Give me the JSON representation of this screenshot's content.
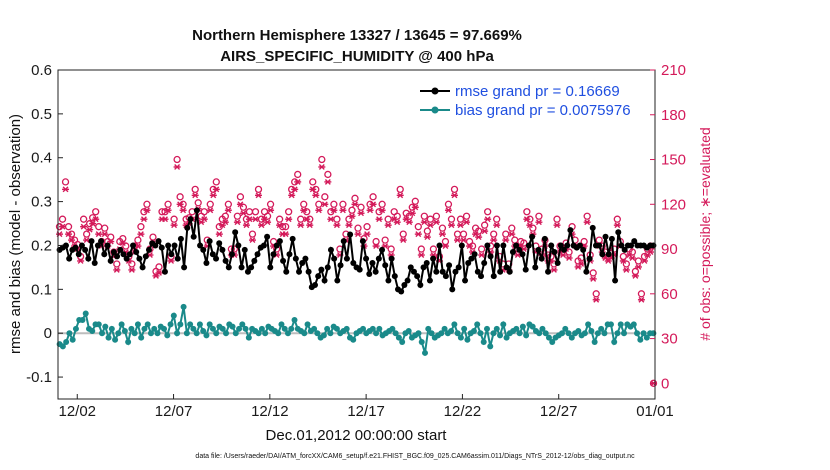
{
  "chart_data": {
    "type": "line",
    "title": "Northern Hemisphere 13327 / 13645 = 97.669%",
    "subtitle": "AIRS_SPECIFIC_HUMIDITY @ 400 hPa",
    "xlabel": "Dec.01,2012 00:00:00 start",
    "ylabel": "rmse and bias (model - observation)",
    "ylabel_right": "# of obs: o=possible; ∗=evaluated",
    "footnote": "data file: /Users/raeder/DAI/ATM_forcXX/CAM6_setup/f.e21.FHIST_BGC.f09_025.CAM6assim.011/Diags_NTrS_2012-12/obs_diag_output.nc",
    "x_ticks": [
      {
        "day": 1,
        "label": "12/02"
      },
      {
        "day": 6,
        "label": "12/07"
      },
      {
        "day": 11,
        "label": "12/12"
      },
      {
        "day": 16,
        "label": "12/17"
      },
      {
        "day": 21,
        "label": "12/22"
      },
      {
        "day": 26,
        "label": "12/27"
      },
      {
        "day": 31,
        "label": "01/01"
      }
    ],
    "xlim": [
      0,
      31
    ],
    "ylim": [
      -0.15,
      0.6
    ],
    "y_ticks": [
      -0.1,
      0,
      0.1,
      0.2,
      0.3,
      0.4,
      0.5,
      0.6
    ],
    "y_tick_labels": [
      "-0.1",
      "0",
      "0.1",
      "0.2",
      "0.3",
      "0.4",
      "0.5",
      "0.6"
    ],
    "ylim_right": [
      -10.5,
      210
    ],
    "y2_ticks": [
      0,
      30,
      60,
      90,
      120,
      150,
      180,
      210
    ],
    "y2_tick_labels": [
      "0",
      "30",
      "60",
      "90",
      "120",
      "150",
      "180",
      "210"
    ],
    "legend_position": "top-right",
    "series": [
      {
        "name": "rmse grand pr = 0.16669",
        "color": "#000000",
        "axis": "left",
        "values": [
          0.19,
          0.195,
          0.2,
          0.17,
          0.19,
          0.195,
          0.18,
          0.2,
          0.19,
          0.17,
          0.21,
          0.16,
          0.2,
          0.21,
          0.18,
          0.2,
          0.165,
          0.185,
          0.175,
          0.19,
          0.18,
          0.17,
          0.18,
          0.2,
          0.185,
          0.17,
          0.15,
          0.175,
          0.19,
          0.205,
          0.2,
          0.21,
          0.195,
          0.14,
          0.2,
          0.18,
          0.2,
          0.17,
          0.215,
          0.15,
          0.24,
          0.26,
          0.22,
          0.28,
          0.2,
          0.19,
          0.16,
          0.21,
          0.18,
          0.17,
          0.205,
          0.19,
          0.165,
          0.15,
          0.18,
          0.23,
          0.2,
          0.15,
          0.19,
          0.14,
          0.15,
          0.165,
          0.18,
          0.195,
          0.2,
          0.22,
          0.15,
          0.18,
          0.2,
          0.21,
          0.165,
          0.14,
          0.18,
          0.215,
          0.17,
          0.14,
          0.16,
          0.17,
          0.14,
          0.105,
          0.11,
          0.13,
          0.145,
          0.12,
          0.15,
          0.19,
          0.17,
          0.12,
          0.155,
          0.21,
          0.17,
          0.225,
          0.16,
          0.15,
          0.145,
          0.21,
          0.17,
          0.135,
          0.16,
          0.14,
          0.17,
          0.19,
          0.155,
          0.12,
          0.17,
          0.13,
          0.1,
          0.095,
          0.11,
          0.12,
          0.15,
          0.14,
          0.13,
          0.11,
          0.15,
          0.16,
          0.12,
          0.17,
          0.14,
          0.2,
          0.14,
          0.13,
          0.155,
          0.1,
          0.14,
          0.15,
          0.2,
          0.12,
          0.16,
          0.17,
          0.18,
          0.14,
          0.13,
          0.16,
          0.2,
          0.175,
          0.13,
          0.2,
          0.14,
          0.2,
          0.15,
          0.14,
          0.185,
          0.2,
          0.19,
          0.18,
          0.145,
          0.2,
          0.22,
          0.15,
          0.19,
          0.17,
          0.215,
          0.14,
          0.2,
          0.185,
          0.16,
          0.2,
          0.19,
          0.2,
          0.235,
          0.2,
          0.195,
          0.2,
          0.19,
          0.14,
          0.17,
          0.24,
          0.2,
          0.2,
          0.18,
          0.22,
          0.18,
          0.215,
          0.12,
          0.23,
          0.2,
          0.19,
          0.2,
          0.2,
          0.21,
          0.2,
          0.2,
          0.2,
          0.195,
          0.2,
          0.2
        ]
      },
      {
        "name": "bias grand pr = 0.0075976",
        "color": "#1a8a8a",
        "axis": "left",
        "values": [
          -0.025,
          -0.03,
          -0.02,
          0.0,
          -0.015,
          0.01,
          0.03,
          0.03,
          0.045,
          0.01,
          0.005,
          0.02,
          0.02,
          0.0,
          0.015,
          -0.01,
          0.01,
          -0.015,
          0.0,
          0.02,
          0.005,
          -0.02,
          0.01,
          0.0,
          0.02,
          -0.01,
          0.01,
          0.02,
          0.0,
          0.01,
          0.0,
          0.015,
          0.01,
          -0.005,
          0.02,
          0.04,
          0.0,
          0.02,
          0.06,
          0.0,
          0.02,
          0.01,
          0.0,
          0.02,
          0.005,
          -0.005,
          0.02,
          0.01,
          0.0,
          0.015,
          0.01,
          0.0,
          0.02,
          0.015,
          0.0,
          0.01,
          0.02,
          0.01,
          -0.01,
          0.01,
          0.005,
          0.0,
          0.01,
          0.0,
          0.015,
          0.01,
          0.005,
          0.0,
          0.02,
          0.01,
          0.0,
          0.01,
          0.03,
          0.01,
          0.005,
          0.0,
          0.02,
          0.005,
          0.01,
          0.0,
          -0.01,
          -0.005,
          0.01,
          0.0,
          0.015,
          0.01,
          0.0,
          0.005,
          0.01,
          -0.01,
          -0.015,
          0.0,
          0.005,
          0.01,
          0.0,
          0.005,
          0.01,
          0.0,
          0.01,
          -0.005,
          0.0,
          0.005,
          0.01,
          0.0,
          -0.01,
          -0.02,
          0.0,
          0.005,
          -0.01,
          -0.005,
          0.0,
          -0.02,
          -0.045,
          0.01,
          0.0,
          -0.01,
          -0.005,
          0.0,
          0.01,
          0.0,
          0.005,
          0.02,
          0.0,
          -0.01,
          0.01,
          -0.015,
          0.0,
          0.005,
          0.02,
          0.0,
          -0.02,
          0.01,
          -0.03,
          0.0,
          0.01,
          -0.005,
          0.02,
          -0.01,
          0.0,
          0.005,
          0.01,
          0.0,
          0.015,
          -0.005,
          0.02,
          0.015,
          0.005,
          0.0,
          0.01,
          0.0,
          -0.01,
          -0.02,
          -0.01,
          -0.005,
          0.0,
          0.01,
          0.0,
          -0.01,
          0.0,
          0.005,
          -0.005,
          0.0,
          0.02,
          0.005,
          -0.02,
          0.0,
          0.01,
          0.0,
          0.02,
          0.02,
          -0.02,
          0.0,
          0.02,
          0.0,
          0.02,
          0.015,
          0.02,
          0.0,
          -0.015,
          0.0,
          -0.01,
          0.0,
          0.0
        ]
      },
      {
        "name": "possible",
        "color": "#d41a5a",
        "axis": "right",
        "marker": "o",
        "values": [
          105,
          110,
          135,
          105,
          100,
          96,
          93,
          85,
          110,
          100,
          107,
          111,
          115,
          105,
          95,
          104,
          95,
          98,
          88,
          80,
          95,
          97,
          92,
          85,
          80,
          92,
          96,
          105,
          115,
          120,
          90,
          98,
          75,
          78,
          115,
          115,
          120,
          85,
          110,
          150,
          125,
          120,
          110,
          111,
          115,
          130,
          121,
          112,
          115,
          96,
          120,
          130,
          135,
          105,
          110,
          112,
          120,
          90,
          90,
          112,
          125,
          118,
          110,
          115,
          100,
          115,
          130,
          110,
          115,
          112,
          120,
          95,
          90,
          110,
          105,
          105,
          115,
          130,
          135,
          140,
          110,
          120,
          115,
          110,
          135,
          130,
          120,
          150,
          125,
          140,
          115,
          120,
          110,
          90,
          120,
          100,
          110,
          116,
          124,
          104,
          118,
          97,
          105,
          120,
          125,
          95,
          115,
          120,
          96,
          110,
          90,
          115,
          112,
          130,
          100,
          114,
          112,
          118,
          122,
          105,
          90,
          112,
          102,
          110,
          90,
          112,
          85,
          104,
          95,
          120,
          110,
          130,
          100,
          110,
          100,
          112,
          95,
          92,
          104,
          102,
          90,
          106,
          115,
          92,
          100,
          110,
          85,
          80,
          100,
          80,
          104,
          96,
          90,
          95,
          94,
          115,
          110,
          104,
          92,
          112,
          90,
          96,
          86,
          85,
          80,
          110,
          92,
          90,
          94,
          88,
          105,
          96,
          82,
          84,
          95,
          112,
          86,
          74,
          60,
          96,
          92,
          88,
          85,
          87,
          90,
          110,
          95,
          85,
          80,
          90,
          88,
          75,
          82,
          60,
          85,
          90,
          92,
          0
        ]
      },
      {
        "name": "evaluated",
        "color": "#d41a5a",
        "axis": "right",
        "marker": "*",
        "values": [
          100,
          105,
          130,
          100,
          96,
          92,
          90,
          82,
          105,
          96,
          103,
          107,
          110,
          100,
          92,
          100,
          92,
          95,
          85,
          76,
          90,
          94,
          88,
          82,
          76,
          88,
          92,
          100,
          110,
          116,
          86,
          94,
          72,
          74,
          110,
          110,
          116,
          82,
          106,
          145,
          120,
          116,
          106,
          107,
          110,
          126,
          117,
          108,
          110,
          92,
          116,
          126,
          130,
          100,
          106,
          108,
          116,
          86,
          86,
          108,
          120,
          114,
          106,
          110,
          96,
          110,
          126,
          106,
          110,
          108,
          116,
          92,
          86,
          106,
          100,
          100,
          110,
          126,
          130,
          135,
          106,
          116,
          110,
          106,
          130,
          126,
          116,
          145,
          120,
          135,
          110,
          116,
          106,
          86,
          116,
          96,
          106,
          112,
          120,
          100,
          114,
          92,
          100,
          116,
          120,
          92,
          110,
          116,
          92,
          106,
          86,
          110,
          108,
          126,
          96,
          110,
          108,
          114,
          118,
          100,
          86,
          108,
          98,
          106,
          86,
          108,
          82,
          100,
          92,
          116,
          106,
          126,
          96,
          106,
          96,
          108,
          92,
          88,
          100,
          98,
          86,
          102,
          110,
          88,
          96,
          106,
          82,
          76,
          96,
          76,
          100,
          92,
          86,
          92,
          90,
          110,
          106,
          100,
          88,
          108,
          86,
          92,
          82,
          82,
          76,
          106,
          88,
          86,
          90,
          84,
          100,
          92,
          78,
          80,
          92,
          108,
          82,
          70,
          56,
          92,
          88,
          84,
          82,
          84,
          86,
          106,
          92,
          82,
          76,
          86,
          84,
          72,
          78,
          56,
          82,
          86,
          88,
          0
        ]
      }
    ]
  }
}
